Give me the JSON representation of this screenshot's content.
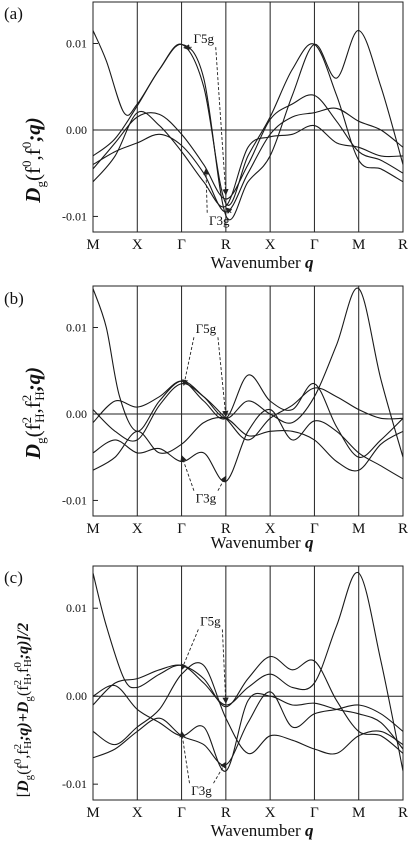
{
  "chart_data": [
    {
      "panel_label": "(a)",
      "type": "line",
      "ylabel": {
        "D": "D",
        "sub": "g",
        "args": "(f",
        "sup1": "0",
        "mid": ",f",
        "sup2": "0",
        "tail": ";q)"
      },
      "xlabel": "Wavenumber q",
      "xlabel_text": "Wavenumber ",
      "xlabel_var": "q",
      "x_ticks": [
        "M",
        "X",
        "Γ",
        "R",
        "X",
        "Γ",
        "M",
        "R"
      ],
      "x_positions": [
        0,
        1,
        2,
        3,
        4,
        5,
        6,
        7
      ],
      "y_ticks": [
        -0.01,
        0.0,
        0.01
      ],
      "y_tick_labels": [
        "-0.01",
        "0.00",
        "0.01"
      ],
      "ylim": [
        -0.0118,
        0.0148
      ],
      "annotations": [
        {
          "text": "Γ5g",
          "x": 2.5,
          "y": 0.0105
        },
        {
          "text": "Γ3g",
          "x": 2.85,
          "y": -0.0105
        }
      ],
      "series": [
        {
          "x": [
            0,
            0.3,
            0.7,
            1,
            1.5,
            2,
            2.5,
            3,
            3.5,
            4,
            4.5,
            5,
            5.5,
            6,
            6.5,
            7
          ],
          "y": [
            0.0115,
            0.008,
            0.002,
            0.003,
            0.007,
            0.0099,
            0.006,
            -0.0099,
            -0.006,
            -0.003,
            0.004,
            0.0099,
            0.006,
            0.0115,
            0.005,
            -0.004
          ]
        },
        {
          "x": [
            0,
            0.5,
            1,
            1.5,
            2,
            2.5,
            3,
            3.5,
            4,
            4.5,
            5,
            5.5,
            6,
            6.5,
            7
          ],
          "y": [
            -0.003,
            -0.001,
            0.0028,
            0.007,
            0.0099,
            0.005,
            -0.0085,
            -0.003,
            0.0015,
            0.007,
            0.0099,
            0.004,
            -0.0035,
            -0.0045,
            -0.006
          ]
        },
        {
          "x": [
            0,
            0.5,
            1,
            1.5,
            2,
            2.5,
            3,
            3.5,
            4,
            4.5,
            5,
            5.5,
            6,
            6.5,
            7
          ],
          "y": [
            -0.0045,
            -0.0015,
            0.0015,
            0.0018,
            -0.0005,
            -0.004,
            -0.008,
            -0.004,
            0.0012,
            0.003,
            0.004,
            0.001,
            -0.0025,
            -0.0035,
            -0.005
          ]
        },
        {
          "x": [
            0,
            0.5,
            1,
            1.5,
            2,
            2.5,
            3,
            3.5,
            4,
            4.5,
            5,
            5.5,
            6,
            6.5,
            7
          ],
          "y": [
            -0.006,
            -0.003,
            0.002,
            0.0005,
            -0.0025,
            -0.006,
            -0.0088,
            -0.002,
            -0.0008,
            -0.0005,
            0.0005,
            -0.0015,
            -0.002,
            -0.003,
            -0.003
          ]
        },
        {
          "x": [
            0,
            0.5,
            1,
            1.5,
            2,
            2.5,
            3,
            3.5,
            4,
            4.5,
            5,
            5.5,
            6,
            6.5,
            7
          ],
          "y": [
            -0.004,
            -0.0025,
            -0.0015,
            -0.0005,
            -0.0018,
            -0.005,
            -0.0095,
            -0.005,
            -0.0005,
            0.0015,
            0.002,
            0.0025,
            0.001,
            0.0,
            -0.002
          ]
        }
      ]
    },
    {
      "panel_label": "(b)",
      "type": "line",
      "ylabel": {
        "D": "D",
        "sub": "g",
        "args": "(f",
        "sup1": "2",
        "sub1": "H",
        "mid": ",f",
        "sup2": "2",
        "sub2": "H",
        "tail": ";q)"
      },
      "xlabel": "Wavenumber q",
      "xlabel_text": "Wavenumber ",
      "xlabel_var": "q",
      "x_ticks": [
        "M",
        "X",
        "Γ",
        "R",
        "X",
        "Γ",
        "M",
        "R"
      ],
      "x_positions": [
        0,
        1,
        2,
        3,
        4,
        5,
        6,
        7
      ],
      "y_ticks": [
        -0.01,
        0.0,
        0.01
      ],
      "y_tick_labels": [
        "-0.01",
        "0.00",
        "0.01"
      ],
      "ylim": [
        -0.0118,
        0.0148
      ],
      "annotations": [
        {
          "text": "Γ5g",
          "x": 2.55,
          "y": 0.0098
        },
        {
          "text": "Γ3g",
          "x": 2.55,
          "y": -0.0098
        }
      ],
      "series": [
        {
          "x": [
            0,
            0.3,
            0.6,
            1,
            1.5,
            2,
            2.5,
            3,
            3.5,
            4,
            4.5,
            5,
            5.5,
            6,
            6.5,
            7
          ],
          "y": [
            0.0145,
            0.01,
            0.002,
            -0.002,
            0.0015,
            0.0038,
            0.002,
            -0.0005,
            0.0015,
            0.0,
            -0.001,
            0.002,
            0.008,
            0.0145,
            0.004,
            -0.005
          ]
        },
        {
          "x": [
            0,
            0.5,
            1,
            1.5,
            2,
            2.5,
            3,
            3.5,
            4,
            4.5,
            5,
            5.5,
            6,
            6.5,
            7
          ],
          "y": [
            -0.001,
            0.0015,
            0.0008,
            0.002,
            0.0038,
            0.0015,
            -0.0005,
            0.0045,
            0.0015,
            0.0005,
            0.0035,
            -0.0015,
            -0.005,
            -0.003,
            -0.0005
          ]
        },
        {
          "x": [
            0,
            0.5,
            1,
            1.5,
            2,
            2.5,
            3,
            3.5,
            4,
            4.5,
            5,
            5.5,
            6,
            6.5,
            7
          ],
          "y": [
            0.0005,
            -0.002,
            -0.003,
            0.001,
            0.0035,
            0.002,
            -0.0005,
            -0.003,
            -0.0005,
            0.001,
            0.003,
            0.002,
            0.0005,
            -0.0005,
            -0.0005
          ]
        },
        {
          "x": [
            0,
            0.5,
            1,
            1.5,
            2,
            2.5,
            3,
            3.5,
            4,
            4.5,
            5,
            5.5,
            6,
            6.5,
            7
          ],
          "y": [
            -0.0045,
            -0.003,
            -0.0045,
            -0.004,
            -0.0055,
            -0.0045,
            -0.0078,
            -0.002,
            0.0005,
            -0.003,
            -0.0008,
            -0.002,
            -0.0045,
            -0.006,
            -0.0075
          ]
        },
        {
          "x": [
            0,
            0.5,
            1,
            1.5,
            2,
            2.5,
            3,
            3.5,
            4,
            4.5,
            5,
            5.5,
            6,
            6.5,
            7
          ],
          "y": [
            -0.0065,
            -0.005,
            -0.002,
            -0.0045,
            -0.0035,
            -0.001,
            -0.0005,
            -0.0025,
            -0.002,
            -0.002,
            -0.003,
            -0.0055,
            -0.0065,
            -0.0035,
            -0.002
          ]
        }
      ]
    },
    {
      "panel_label": "(c)",
      "type": "line",
      "ylabel": {
        "open": "[",
        "D1": "D",
        "sub1": "g",
        "args1": "(f",
        "sup1a": "0",
        "mid1": ",f",
        "sup1b": "2",
        "sub1b": "H",
        "tail1": ";q)+",
        "D2": "D",
        "sub2": "g",
        "args2": "(f",
        "sup2a": "2",
        "sub2a": "H",
        "mid2": ",f",
        "sup2b": "0",
        "sub2b": "H",
        "tail2": ";q)]/2"
      },
      "xlabel": "Wavenumber q",
      "xlabel_text": "Wavenumber ",
      "xlabel_var": "q",
      "x_ticks": [
        "M",
        "X",
        "Γ",
        "R",
        "X",
        "Γ",
        "M",
        "R"
      ],
      "x_positions": [
        0,
        1,
        2,
        3,
        4,
        5,
        6,
        7
      ],
      "y_ticks": [
        -0.01,
        0.0,
        0.01
      ],
      "y_tick_labels": [
        "-0.01",
        "0.00",
        "0.01"
      ],
      "ylim": [
        -0.0118,
        0.0148
      ],
      "annotations": [
        {
          "text": "Γ5g",
          "x": 2.65,
          "y": 0.0085
        },
        {
          "text": "Γ3g",
          "x": 2.45,
          "y": -0.0108
        }
      ],
      "series": [
        {
          "x": [
            0,
            0.3,
            0.7,
            1,
            1.5,
            2,
            2.5,
            3,
            3.5,
            4,
            4.5,
            5,
            5.5,
            6,
            6.5,
            7
          ],
          "y": [
            0.014,
            0.008,
            0.002,
            0.001,
            0.0025,
            0.0035,
            0.0015,
            -0.001,
            0.001,
            0.0025,
            0.001,
            0.0015,
            0.008,
            0.014,
            0.004,
            -0.0085
          ]
        },
        {
          "x": [
            0,
            0.5,
            1,
            1.5,
            2,
            2.5,
            3,
            3.5,
            4,
            4.5,
            5,
            5.5,
            6,
            6.5,
            7
          ],
          "y": [
            -0.001,
            0.0015,
            0.002,
            0.003,
            0.0035,
            0.002,
            -0.0012,
            0.002,
            0.0045,
            0.003,
            0.004,
            -0.0005,
            -0.004,
            -0.0045,
            -0.0065
          ]
        },
        {
          "x": [
            0,
            0.5,
            1,
            1.5,
            2,
            2.5,
            3,
            3.5,
            4,
            4.5,
            5,
            5.5,
            6,
            6.5,
            7
          ],
          "y": [
            -0.007,
            -0.006,
            -0.004,
            -0.0025,
            -0.0045,
            -0.0055,
            -0.0078,
            -0.003,
            0.0005,
            -0.0035,
            -0.002,
            -0.0015,
            -0.001,
            -0.002,
            -0.004
          ]
        },
        {
          "x": [
            0,
            0.5,
            1,
            1.5,
            2,
            2.5,
            3,
            3.5,
            4,
            4.5,
            5,
            5.5,
            6,
            6.5,
            7
          ],
          "y": [
            -0.004,
            -0.0055,
            -0.0035,
            -0.0015,
            0.0025,
            0.0035,
            -0.0025,
            -0.0065,
            -0.0045,
            -0.005,
            -0.006,
            -0.0065,
            -0.0045,
            -0.004,
            -0.0055
          ]
        },
        {
          "x": [
            0,
            0.5,
            1,
            1.5,
            2,
            2.5,
            3,
            3.5,
            4,
            4.5,
            5,
            5.5,
            6,
            6.5,
            7
          ],
          "y": [
            0.0,
            0.0012,
            -0.0015,
            -0.003,
            -0.0045,
            -0.0035,
            -0.0085,
            -0.0005,
            0.0,
            -0.001,
            -0.0008,
            -0.0015,
            -0.002,
            -0.003,
            -0.006
          ]
        }
      ]
    }
  ]
}
